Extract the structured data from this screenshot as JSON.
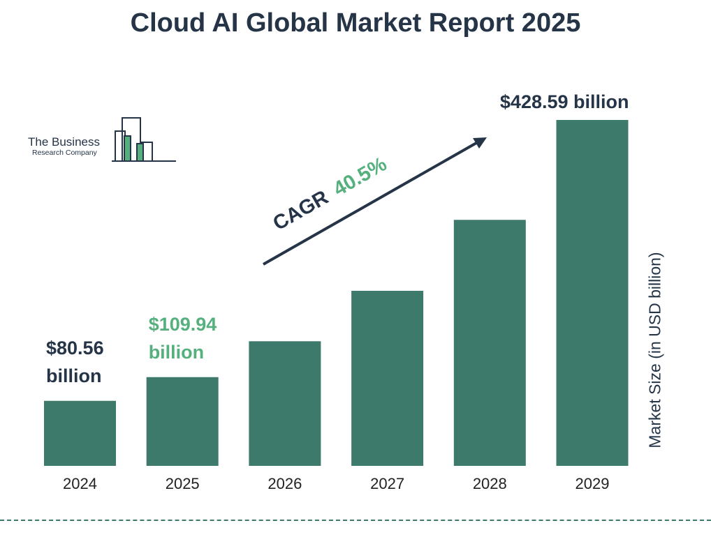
{
  "title": "Cloud AI Global Market Report 2025",
  "logo": {
    "line1": "The Business",
    "line2": "Research Company"
  },
  "cagr": {
    "label": "CAGR",
    "value": "40.5%"
  },
  "colors": {
    "bar": "#3d7a6b",
    "title": "#253447",
    "highlight": "#55b07e",
    "dark_text": "#253447"
  },
  "chart_data": {
    "type": "bar",
    "title": "Cloud AI Global Market Report 2025",
    "categories": [
      "2024",
      "2025",
      "2026",
      "2027",
      "2028",
      "2029"
    ],
    "values": [
      80.56,
      109.94,
      154.4,
      216.9,
      304.8,
      428.59
    ],
    "ylabel": "Market Size (in USD billion)",
    "xlabel": "",
    "ylim": [
      0,
      428.59
    ],
    "grid": false,
    "data_labels": [
      {
        "category": "2024",
        "lines": [
          "$80.56",
          "billion"
        ],
        "color": "#253447"
      },
      {
        "category": "2025",
        "lines": [
          "$109.94",
          "billion"
        ],
        "color": "#55b07e"
      },
      {
        "category": "2029",
        "lines": [
          "$428.59 billion"
        ],
        "color": "#253447"
      }
    ]
  }
}
